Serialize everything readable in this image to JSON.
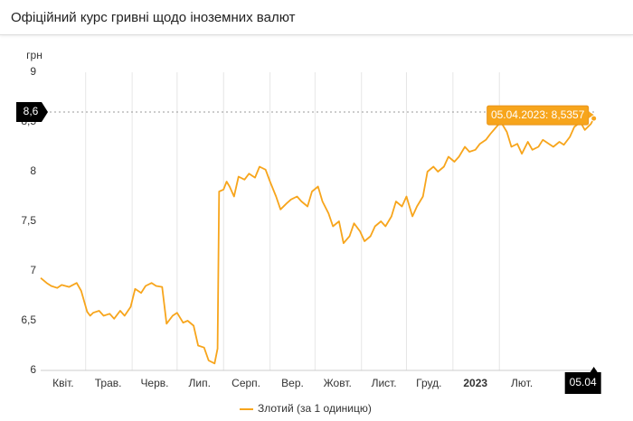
{
  "page_title": "Офіційний курс гривні щодо іноземних валют",
  "chart_data": {
    "type": "line",
    "y_label": "грн",
    "x": [
      "2022-04-01",
      "2022-04-05",
      "2022-04-08",
      "2022-04-12",
      "2022-04-15",
      "2022-04-20",
      "2022-04-25",
      "2022-04-28",
      "2022-05-02",
      "2022-05-04",
      "2022-05-06",
      "2022-05-10",
      "2022-05-13",
      "2022-05-17",
      "2022-05-20",
      "2022-05-24",
      "2022-05-27",
      "2022-05-31",
      "2022-06-03",
      "2022-06-07",
      "2022-06-10",
      "2022-06-14",
      "2022-06-17",
      "2022-06-21",
      "2022-06-24",
      "2022-06-28",
      "2022-07-01",
      "2022-07-05",
      "2022-07-08",
      "2022-07-12",
      "2022-07-15",
      "2022-07-19",
      "2022-07-22",
      "2022-07-26",
      "2022-07-28",
      "2022-07-29",
      "2022-08-01",
      "2022-08-03",
      "2022-08-05",
      "2022-08-08",
      "2022-08-11",
      "2022-08-15",
      "2022-08-18",
      "2022-08-22",
      "2022-08-25",
      "2022-08-29",
      "2022-09-01",
      "2022-09-05",
      "2022-09-08",
      "2022-09-12",
      "2022-09-15",
      "2022-09-19",
      "2022-09-22",
      "2022-09-26",
      "2022-09-29",
      "2022-10-03",
      "2022-10-06",
      "2022-10-10",
      "2022-10-13",
      "2022-10-17",
      "2022-10-20",
      "2022-10-24",
      "2022-10-27",
      "2022-10-31",
      "2022-11-03",
      "2022-11-07",
      "2022-11-10",
      "2022-11-14",
      "2022-11-17",
      "2022-11-21",
      "2022-11-24",
      "2022-11-28",
      "2022-12-01",
      "2022-12-05",
      "2022-12-08",
      "2022-12-12",
      "2022-12-15",
      "2022-12-19",
      "2022-12-22",
      "2022-12-26",
      "2022-12-29",
      "2023-01-02",
      "2023-01-05",
      "2023-01-09",
      "2023-01-12",
      "2023-01-16",
      "2023-01-19",
      "2023-01-23",
      "2023-01-26",
      "2023-01-30",
      "2023-02-02",
      "2023-02-06",
      "2023-02-09",
      "2023-02-13",
      "2023-02-16",
      "2023-02-20",
      "2023-02-23",
      "2023-02-27",
      "2023-03-02",
      "2023-03-06",
      "2023-03-09",
      "2023-03-13",
      "2023-03-16",
      "2023-03-20",
      "2023-03-23",
      "2023-03-27",
      "2023-03-30",
      "2023-04-03",
      "2023-04-05"
    ],
    "series": [
      {
        "name": "Злотий (за 1 одиницю)",
        "color": "#f7a51c",
        "values": [
          6.93,
          6.88,
          6.85,
          6.83,
          6.86,
          6.84,
          6.88,
          6.8,
          6.59,
          6.55,
          6.58,
          6.6,
          6.55,
          6.57,
          6.52,
          6.6,
          6.55,
          6.64,
          6.82,
          6.78,
          6.85,
          6.88,
          6.85,
          6.84,
          6.47,
          6.55,
          6.58,
          6.48,
          6.5,
          6.45,
          6.25,
          6.23,
          6.1,
          6.07,
          6.22,
          7.8,
          7.82,
          7.9,
          7.85,
          7.75,
          7.95,
          7.92,
          7.98,
          7.94,
          8.05,
          8.02,
          7.9,
          7.75,
          7.62,
          7.68,
          7.72,
          7.75,
          7.7,
          7.65,
          7.8,
          7.85,
          7.7,
          7.58,
          7.45,
          7.5,
          7.28,
          7.35,
          7.48,
          7.4,
          7.3,
          7.35,
          7.45,
          7.5,
          7.45,
          7.55,
          7.7,
          7.65,
          7.75,
          7.55,
          7.65,
          7.75,
          8.0,
          8.05,
          8.0,
          8.05,
          8.15,
          8.1,
          8.15,
          8.25,
          8.2,
          8.22,
          8.28,
          8.32,
          8.38,
          8.45,
          8.5,
          8.4,
          8.25,
          8.28,
          8.18,
          8.3,
          8.22,
          8.25,
          8.32,
          8.28,
          8.25,
          8.3,
          8.27,
          8.35,
          8.45,
          8.5,
          8.42,
          8.48,
          8.5357
        ]
      }
    ],
    "xlim": [
      "2022-04-01",
      "2023-04-07"
    ],
    "xticks": [
      {
        "value": "2022-04-01",
        "label": "Квіт."
      },
      {
        "value": "2022-05-01",
        "label": "Трав."
      },
      {
        "value": "2022-06-01",
        "label": "Черв."
      },
      {
        "value": "2022-07-01",
        "label": "Лип."
      },
      {
        "value": "2022-08-01",
        "label": "Серп."
      },
      {
        "value": "2022-09-01",
        "label": "Вер."
      },
      {
        "value": "2022-10-01",
        "label": "Жовт."
      },
      {
        "value": "2022-11-01",
        "label": "Лист."
      },
      {
        "value": "2022-12-01",
        "label": "Груд."
      },
      {
        "value": "2023-01-01",
        "label": "2023"
      },
      {
        "value": "2023-02-01",
        "label": "Лют."
      }
    ],
    "ylim": [
      6,
      9
    ],
    "yticks": [
      6,
      {
        "value": 6.5,
        "label": "6,5"
      },
      7,
      {
        "value": 7.5,
        "label": "7,5"
      },
      8,
      {
        "value": 8.5,
        "label": "8,5"
      },
      9
    ],
    "grid": "x",
    "crosshair": {
      "value": 8.6,
      "label": "8,6"
    },
    "end_label": "05.04",
    "tooltip": "05.04.2023: 8,5357",
    "legend": "bottom"
  }
}
